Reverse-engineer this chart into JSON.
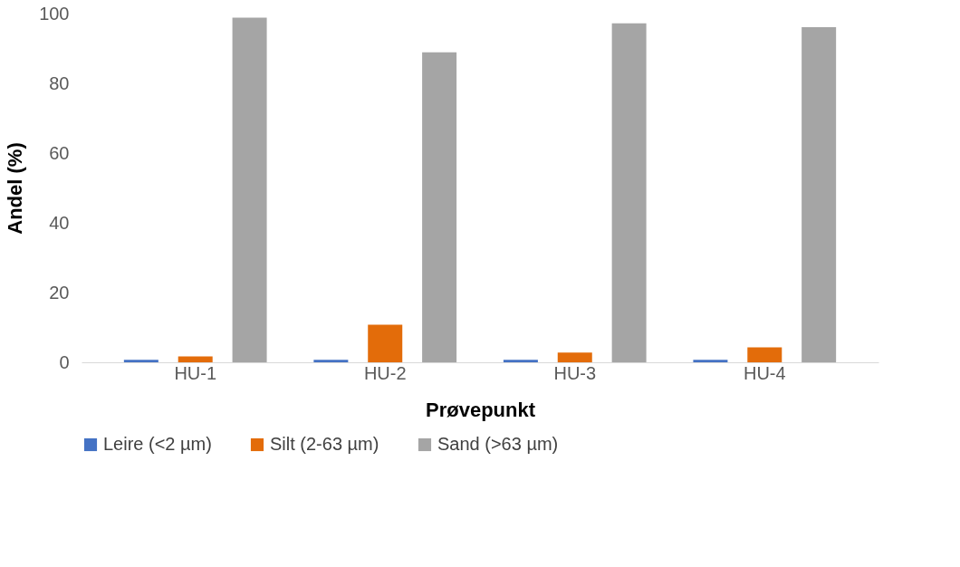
{
  "chart_data": {
    "type": "bar",
    "xlabel": "Prøvepunkt",
    "ylabel": "Andel (%)",
    "categories": [
      "HU-1",
      "HU-2",
      "HU-3",
      "HU-4"
    ],
    "series": [
      {
        "name": "Leire (<2 µm)",
        "color": "#4472c4",
        "values": [
          0.7,
          0.7,
          0.7,
          0.7
        ]
      },
      {
        "name": "Silt (2-63 µm)",
        "color": "#e36c0a",
        "values": [
          1.7,
          10.8,
          2.8,
          4.3
        ]
      },
      {
        "name": "Sand (>63 µm)",
        "color": "#a5a5a5",
        "values": [
          98.8,
          88.9,
          97.2,
          96.1
        ]
      }
    ],
    "ylim": [
      0,
      100
    ],
    "yticks": [
      0,
      20,
      40,
      60,
      80,
      100
    ],
    "grid": false,
    "legend": "bottom"
  }
}
